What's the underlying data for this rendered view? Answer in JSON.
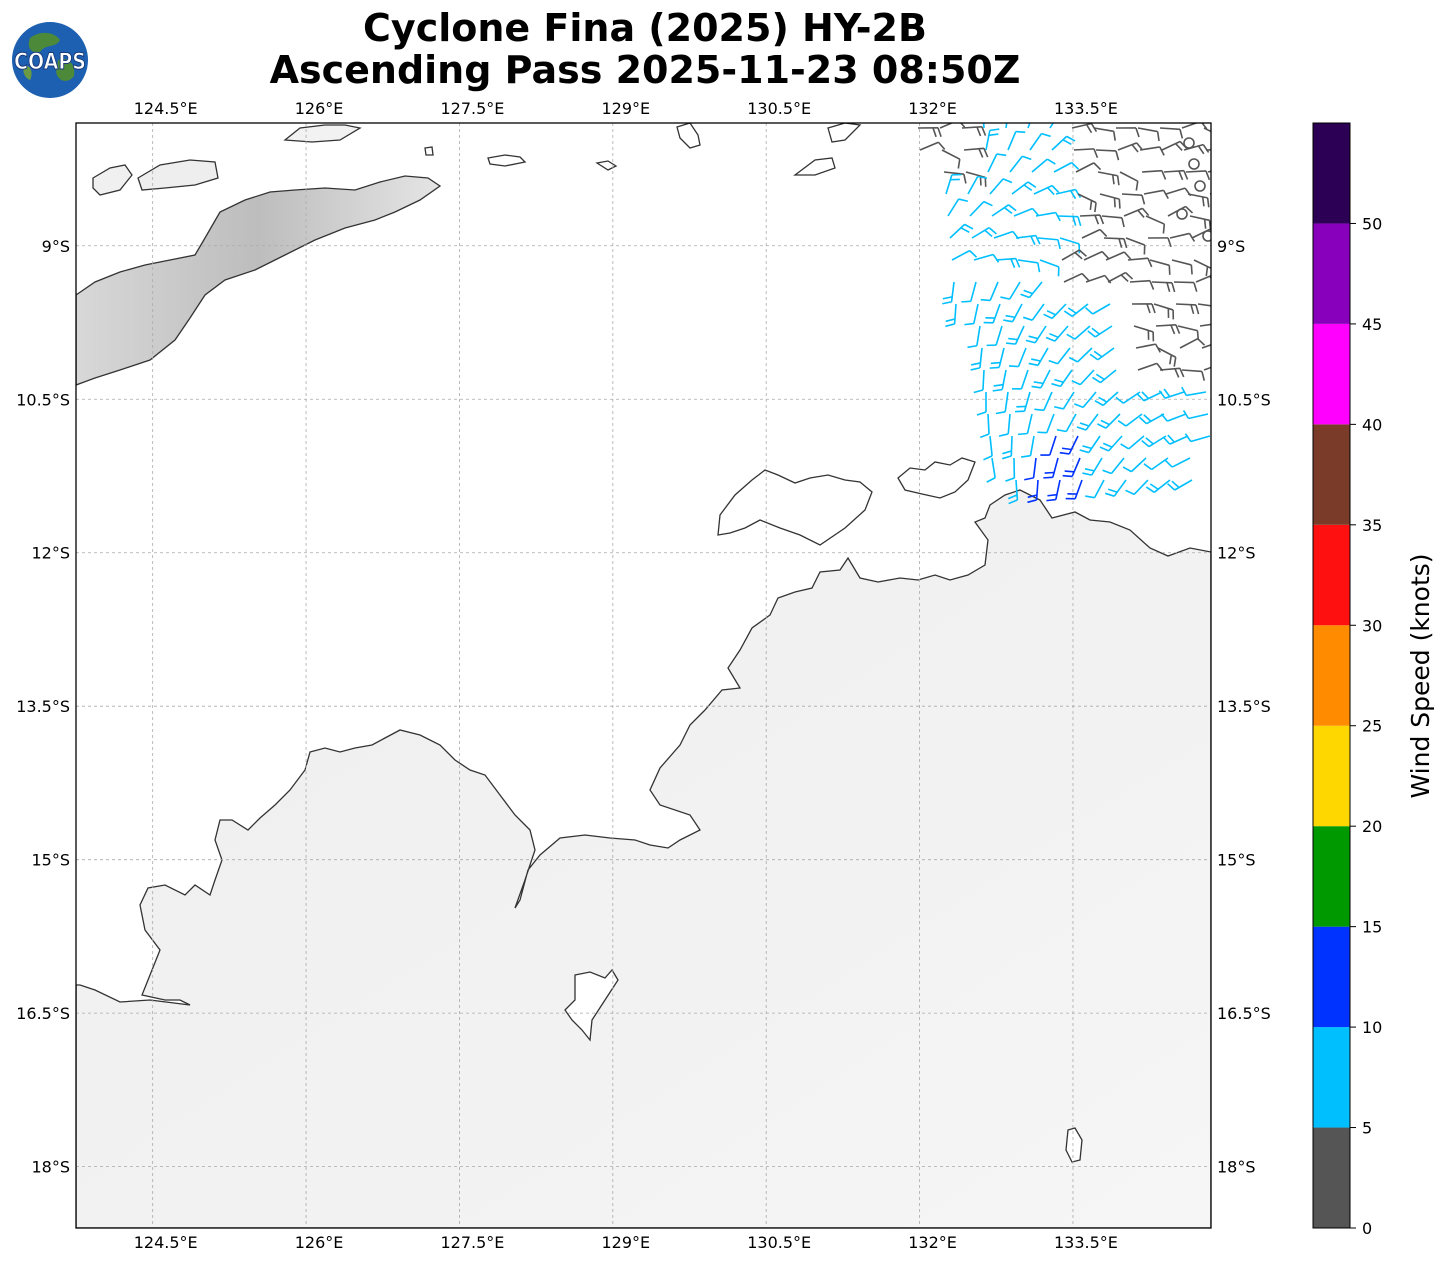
{
  "title": {
    "line1": "Cyclone Fina (2025) HY-2B",
    "line2": "Ascending Pass 2025-11-23 08:50Z"
  },
  "logo": {
    "text": "COAPS",
    "icon": "globe-icon"
  },
  "map": {
    "lon_ticks": [
      "124.5°E",
      "126°E",
      "127.5°E",
      "129°E",
      "130.5°E",
      "132°E",
      "133.5°E"
    ],
    "lat_ticks": [
      "9°S",
      "10.5°S",
      "12°S",
      "13.5°S",
      "15°S",
      "16.5°S",
      "18°S"
    ],
    "lon_values": [
      124.5,
      126,
      127.5,
      129,
      130.5,
      132,
      133.5
    ],
    "lat_values": [
      -9,
      -10.5,
      -12,
      -13.5,
      -15,
      -16.5,
      -18
    ],
    "lon_range": [
      123.75,
      134.85
    ],
    "lat_range": [
      -18.6,
      -7.8
    ],
    "grid": true
  },
  "colorbar": {
    "label": "Wind Speed (knots)",
    "ticks": [
      "0",
      "5",
      "10",
      "15",
      "20",
      "25",
      "30",
      "35",
      "40",
      "45",
      "50"
    ],
    "bins": [
      {
        "min": 0,
        "max": 5,
        "color": "#555555"
      },
      {
        "min": 5,
        "max": 10,
        "color": "#00bfff"
      },
      {
        "min": 10,
        "max": 15,
        "color": "#0033ff"
      },
      {
        "min": 15,
        "max": 20,
        "color": "#009900"
      },
      {
        "min": 20,
        "max": 25,
        "color": "#ffd700"
      },
      {
        "min": 25,
        "max": 30,
        "color": "#ff8c00"
      },
      {
        "min": 30,
        "max": 35,
        "color": "#ff1010"
      },
      {
        "min": 35,
        "max": 40,
        "color": "#7a3b28"
      },
      {
        "min": 40,
        "max": 45,
        "color": "#ff00ff"
      },
      {
        "min": 45,
        "max": 50,
        "color": "#8800bb"
      },
      {
        "min": 50,
        "max": 55,
        "color": "#2b0055"
      }
    ]
  },
  "colors": {
    "coastline": "#333333",
    "grid": "#aaaaaa",
    "land_shade": "#f3f3f3",
    "wind_calm": "#555555",
    "wind_5_10": "#00bfff",
    "wind_10_15": "#0033ff"
  }
}
